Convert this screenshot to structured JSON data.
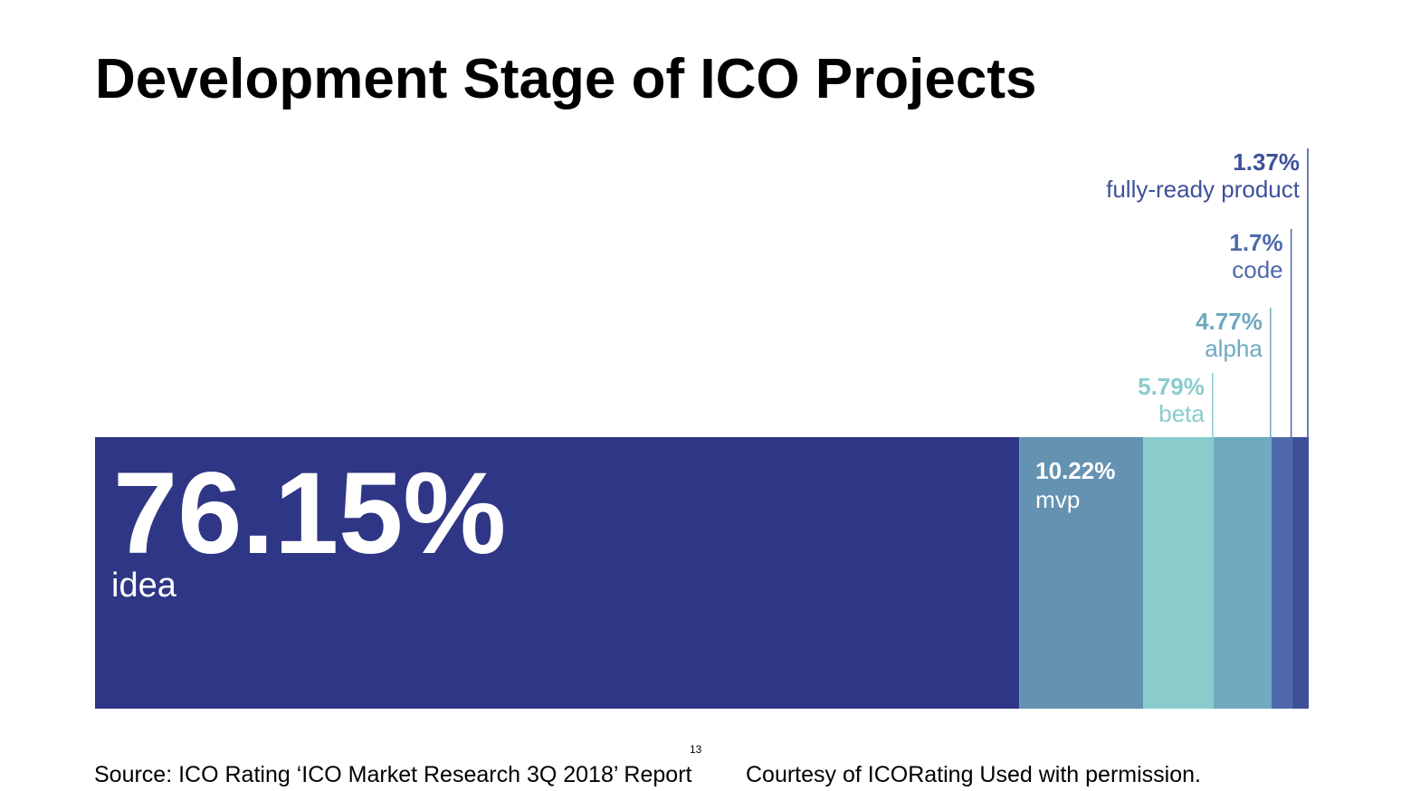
{
  "title": "Development Stage of ICO Projects",
  "page_number": "13",
  "footer": {
    "source": "Source: ICO Rating ‘ICO Market Research 3Q 2018’ Report",
    "courtesy": "Courtesy of ICORating Used with permission."
  },
  "chart_data": {
    "type": "bar",
    "orientation": "horizontal-stacked-100",
    "categories": [
      "idea",
      "mvp",
      "beta",
      "alpha",
      "code",
      "fully-ready product"
    ],
    "values": [
      76.15,
      10.22,
      5.79,
      4.77,
      1.7,
      1.37
    ],
    "value_labels": [
      "76.15%",
      "10.22%",
      "5.79%",
      "4.77%",
      "1.7%",
      "1.37%"
    ],
    "colors": [
      "#2f3685",
      "#6592b1",
      "#8acccc",
      "#6faabf",
      "#4e6aac",
      "#3d5199"
    ],
    "label_colors": [
      "#ffffff",
      "#ffffff",
      "#8acccc",
      "#6faabf",
      "#4e6aac",
      "#3d5199"
    ],
    "label_text_colors": [
      "#ffffff",
      "#ffffff",
      "#8acccc",
      "#6faabf",
      "#4e6aac",
      "#3d5199"
    ],
    "title": "",
    "xlabel": "",
    "ylabel": ""
  }
}
